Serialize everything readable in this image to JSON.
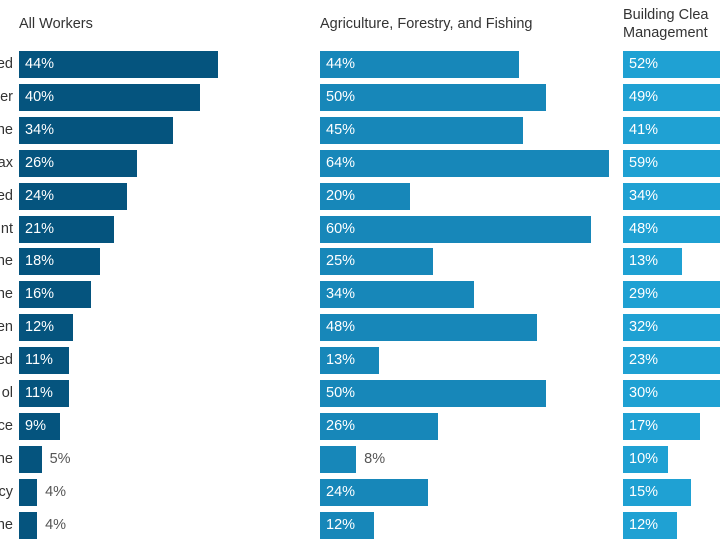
{
  "chart_data": {
    "type": "bar",
    "orientation": "horizontal",
    "categories": [
      "ed",
      "er",
      "ne",
      "ax",
      "ed",
      "nt",
      "ne",
      "ne",
      "en",
      "ed",
      "ol",
      "ce",
      "ne",
      "cy",
      "ne"
    ],
    "value_format": "percent",
    "panels": [
      {
        "title": [
          "All Workers"
        ],
        "color": "#05547e",
        "values": [
          44,
          40,
          34,
          26,
          24,
          21,
          18,
          16,
          12,
          11,
          11,
          9,
          5,
          4,
          4
        ]
      },
      {
        "title": [
          "Agriculture, Forestry, and Fishing"
        ],
        "color": "#1787b9",
        "values": [
          44,
          50,
          45,
          64,
          20,
          60,
          25,
          34,
          48,
          13,
          50,
          26,
          8,
          24,
          12
        ]
      },
      {
        "title": [
          "Building Clea",
          "Management"
        ],
        "color": "#1fa1d3",
        "values": [
          52,
          49,
          41,
          59,
          34,
          48,
          13,
          29,
          32,
          23,
          30,
          17,
          10,
          15,
          12
        ]
      }
    ],
    "grid": false,
    "legend": "none"
  }
}
